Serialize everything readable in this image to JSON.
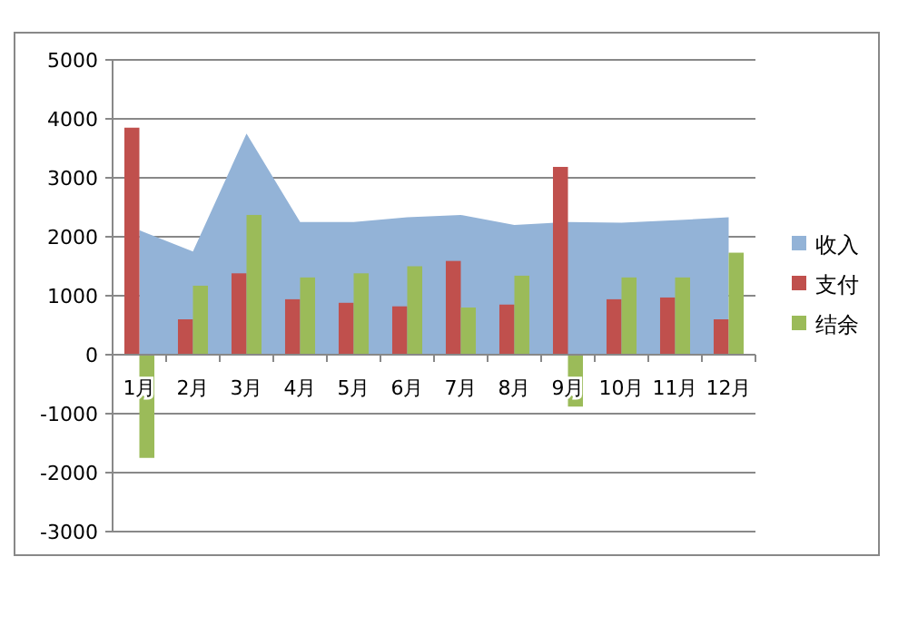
{
  "chart_data": {
    "type": "bar",
    "categories": [
      "1月",
      "2月",
      "3月",
      "4月",
      "5月",
      "6月",
      "7月",
      "8月",
      "9月",
      "10月",
      "11月",
      "12月"
    ],
    "series": [
      {
        "name": "收入",
        "type": "area",
        "color": "#93b3d7",
        "values": [
          2110,
          1750,
          3750,
          2250,
          2250,
          2330,
          2370,
          2200,
          2250,
          2240,
          2280,
          2330
        ]
      },
      {
        "name": "支付",
        "type": "bar",
        "color": "#c0504d",
        "values": [
          3850,
          600,
          1380,
          940,
          880,
          820,
          1590,
          850,
          3185,
          940,
          970,
          600
        ]
      },
      {
        "name": "结余",
        "type": "bar",
        "color": "#9bbb59",
        "values": [
          -1750,
          1170,
          2370,
          1310,
          1380,
          1500,
          800,
          1340,
          -880,
          1310,
          1310,
          1730
        ]
      }
    ],
    "ylim": [
      -3000,
      5000
    ],
    "yticks": [
      -3000,
      -2000,
      -1000,
      0,
      1000,
      2000,
      3000,
      4000,
      5000
    ],
    "grid": "y",
    "legend": "right"
  }
}
